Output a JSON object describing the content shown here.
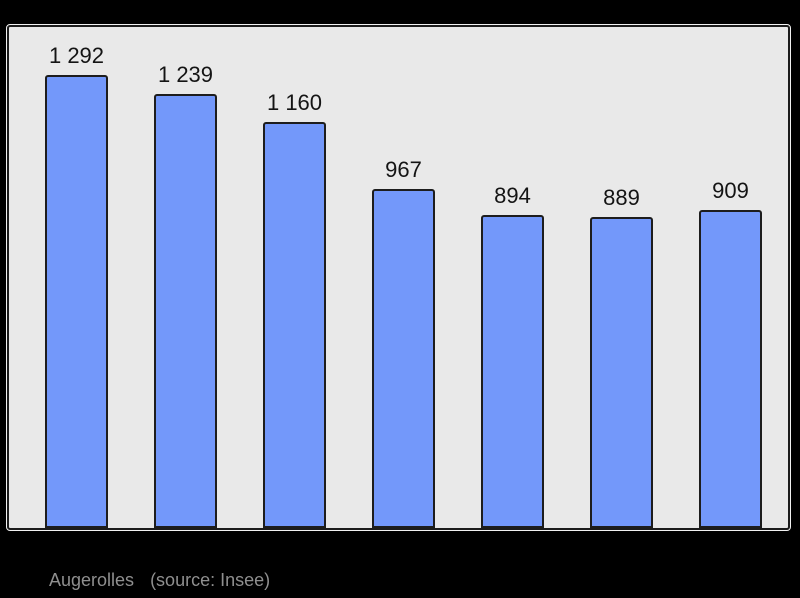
{
  "page": {
    "background_color": "#000000"
  },
  "chart_data": {
    "type": "bar",
    "values": [
      1292,
      1239,
      1160,
      967,
      894,
      889,
      909
    ],
    "value_labels": [
      "1 292",
      "1 239",
      "1 160",
      "967",
      "894",
      "889",
      "909"
    ],
    "title": "",
    "xlabel": "",
    "ylabel": "",
    "ylim": [
      0,
      1430
    ],
    "grid": false,
    "legend": "none",
    "bar_color": "#7398fa",
    "bar_border_color": "#1d1d1d",
    "plot_background": "#e9e9e9",
    "plot_border_color": "#1c1c1c",
    "label_color": "#141414"
  },
  "caption": {
    "commune": "Augerolles",
    "source": "(source: Insee)",
    "color": "#8f8f8f"
  }
}
